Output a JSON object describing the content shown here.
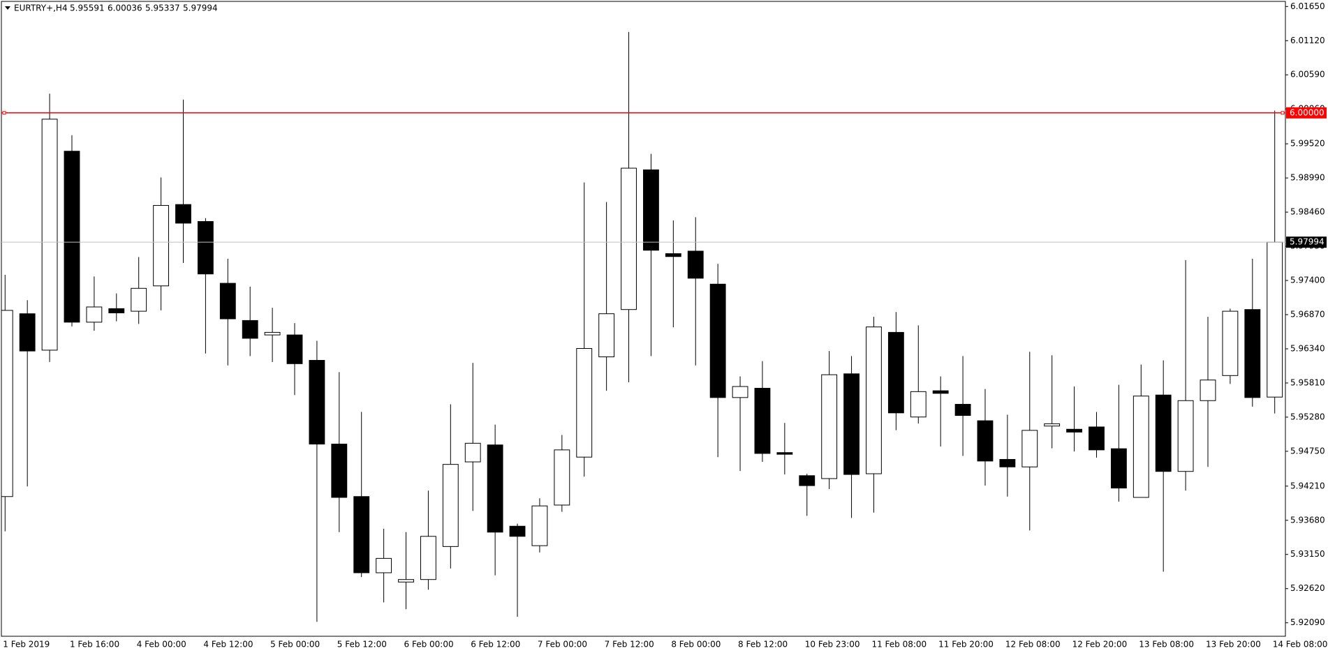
{
  "chart_data": {
    "type": "candlestick",
    "title": "EURTRY+,H4",
    "categories": [
      "1 Feb 2019",
      null,
      null,
      "1 Feb 16:00",
      null,
      null,
      "4 Feb 00:00",
      null,
      null,
      "4 Feb 12:00",
      null,
      null,
      "5 Feb 00:00",
      null,
      null,
      "5 Feb 12:00",
      null,
      null,
      "6 Feb 00:00",
      null,
      null,
      "6 Feb 12:00",
      null,
      null,
      "7 Feb 00:00",
      null,
      null,
      "7 Feb 12:00",
      null,
      null,
      "8 Feb 00:00",
      null,
      null,
      "8 Feb 12:00",
      null,
      null,
      "10 Feb 23:00",
      null,
      null,
      "11 Feb 08:00",
      null,
      null,
      "11 Feb 20:00",
      null,
      null,
      "12 Feb 08:00",
      null,
      null,
      "12 Feb 20:00",
      null,
      null,
      "13 Feb 08:00",
      null,
      null,
      "13 Feb 20:00",
      null,
      null,
      "14 Feb 08:00"
    ],
    "open": [
      5.94048,
      5.96884,
      5.96319,
      5.99405,
      5.96753,
      5.96963,
      5.96923,
      5.97316,
      5.98578,
      5.98315,
      5.97356,
      5.96779,
      5.96555,
      5.96555,
      5.96161,
      5.94862,
      5.94048,
      5.92866,
      5.92722,
      5.92761,
      5.93273,
      5.94586,
      5.94849,
      5.93588,
      5.93286,
      5.93916,
      5.9466,
      5.96215,
      5.96949,
      5.99116,
      5.97816,
      5.97855,
      5.97343,
      5.95584,
      5.95728,
      5.9473,
      5.94372,
      5.94327,
      5.95952,
      5.94402,
      5.96595,
      5.95282,
      5.95689,
      5.95479,
      5.95224,
      5.94624,
      5.94508,
      5.95142,
      5.95092,
      5.95128,
      5.9479,
      5.94035,
      5.95623,
      5.94438,
      5.95536,
      5.95925,
      5.96949,
      5.95591
    ],
    "high": [
      5.97488,
      5.97094,
      6.00298,
      5.99654,
      5.97462,
      5.97199,
      5.97764,
      5.98998,
      6.00206,
      5.98368,
      5.97737,
      5.97304,
      5.96976,
      5.96739,
      5.96464,
      5.95978,
      5.95361,
      5.93549,
      5.93496,
      5.9414,
      5.95479,
      5.96122,
      5.95164,
      5.93628,
      5.94021,
      5.95003,
      5.98919,
      5.98617,
      6.01256,
      5.99365,
      5.98331,
      5.98381,
      5.97658,
      5.95912,
      5.96149,
      5.9519,
      5.94402,
      5.96306,
      5.96227,
      5.96836,
      5.9691,
      5.96704,
      5.95912,
      5.96227,
      5.95716,
      5.95318,
      5.96293,
      5.9624,
      5.95755,
      5.95361,
      5.95781,
      5.96096,
      5.96161,
      5.97715,
      5.96836,
      5.96963,
      5.97737,
      6.00036
    ],
    "low": [
      5.93509,
      5.94205,
      5.96135,
      5.96687,
      5.96621,
      5.96766,
      5.96726,
      5.96936,
      5.97672,
      5.96267,
      5.96083,
      5.96227,
      5.96135,
      5.95623,
      5.92104,
      5.93496,
      5.928,
      5.92406,
      5.92301,
      5.92603,
      5.92932,
      5.93825,
      5.92826,
      5.92183,
      5.93181,
      5.93811,
      5.94358,
      5.95689,
      5.95821,
      5.96227,
      5.96674,
      5.96083,
      5.9466,
      5.94445,
      5.94586,
      5.94391,
      5.93748,
      5.94164,
      5.93717,
      5.93799,
      5.95077,
      5.9518,
      5.94824,
      5.94679,
      5.94218,
      5.94048,
      5.93522,
      5.94796,
      5.94747,
      5.94652,
      5.93969,
      5.94035,
      5.92882,
      5.9414,
      5.94508,
      5.95795,
      5.95443,
      5.95337
    ],
    "close": [
      5.96936,
      5.96306,
      5.99902,
      5.96753,
      5.96989,
      5.96897,
      5.97278,
      5.98564,
      5.98289,
      5.97501,
      5.96805,
      5.96503,
      5.96595,
      5.96109,
      5.94862,
      5.94035,
      5.92866,
      5.93089,
      5.92761,
      5.93431,
      5.94547,
      5.94875,
      5.93496,
      5.93431,
      5.93903,
      5.94772,
      5.96345,
      5.96884,
      5.99142,
      5.97869,
      5.97771,
      5.97435,
      5.95584,
      5.95755,
      5.94717,
      5.94704,
      5.94218,
      5.95938,
      5.94391,
      5.96679,
      5.95346,
      5.95676,
      5.95649,
      5.95306,
      5.94599,
      5.94508,
      5.95075,
      5.95177,
      5.95048,
      5.94772,
      5.9418,
      5.95607,
      5.94438,
      5.95536,
      5.95856,
      5.96923,
      5.95584,
      5.97994
    ],
    "up_color": "#ffffff",
    "down_color": "#000000",
    "outline_color": "#000000",
    "ylim": [
      5.91881,
      6.01729
    ],
    "yticks": [
      {
        "value": 6.0165,
        "label": "6.01650"
      },
      {
        "value": 6.0112,
        "label": "6.01120"
      },
      {
        "value": 6.0059,
        "label": "6.00590"
      },
      {
        "value": 6.0006,
        "label": "6.00060"
      },
      {
        "value": 5.9952,
        "label": "5.99520"
      },
      {
        "value": 5.9899,
        "label": "5.98990"
      },
      {
        "value": 5.9846,
        "label": "5.98460"
      },
      {
        "value": 5.9793,
        "label": "5.97930"
      },
      {
        "value": 5.974,
        "label": "5.97400"
      },
      {
        "value": 5.9687,
        "label": "5.96870"
      },
      {
        "value": 5.9634,
        "label": "5.96340"
      },
      {
        "value": 5.9581,
        "label": "5.95810"
      },
      {
        "value": 5.9528,
        "label": "5.95280"
      },
      {
        "value": 5.9475,
        "label": "5.94750"
      },
      {
        "value": 5.9421,
        "label": "5.94210"
      },
      {
        "value": 5.9368,
        "label": "5.93680"
      },
      {
        "value": 5.9315,
        "label": "5.93150"
      },
      {
        "value": 5.9262,
        "label": "5.92620"
      },
      {
        "value": 5.9209,
        "label": "5.92090"
      }
    ],
    "price_line": {
      "value": 6,
      "label": "6.00000",
      "color": "#ff0000"
    },
    "bid_line_color": "#c0c0c0"
  }
}
